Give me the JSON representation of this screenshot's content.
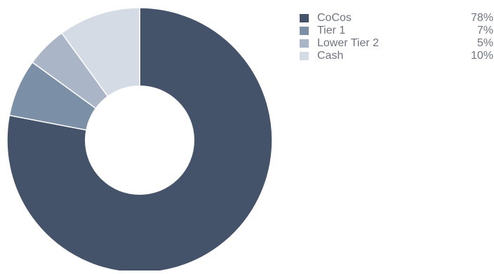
{
  "chart_data": {
    "type": "pie",
    "variant": "donut",
    "title": "",
    "categories": [
      "CoCos",
      "Tier 1",
      "Lower Tier 2",
      "Cash"
    ],
    "values": [
      78,
      7,
      5,
      10
    ],
    "value_labels": [
      "78%",
      "7%",
      "5%",
      "10%"
    ],
    "colors": [
      "#44536a",
      "#7b8fa6",
      "#aab6c7",
      "#d5dbe4"
    ],
    "legend_position": "top-right"
  }
}
